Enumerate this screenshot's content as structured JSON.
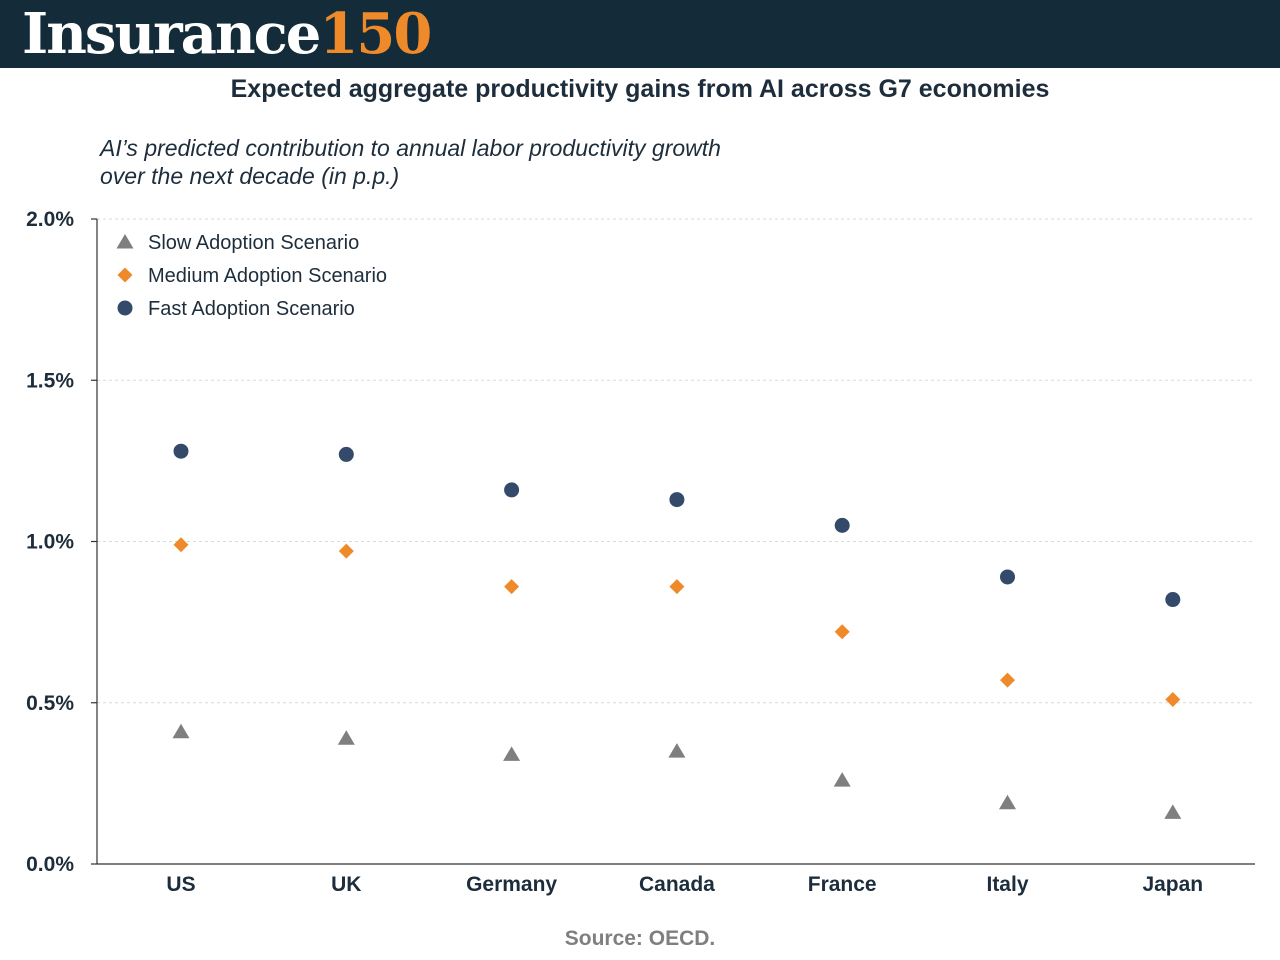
{
  "brand": {
    "word": "Insurance",
    "number": "150"
  },
  "colors": {
    "header_bg": "#142b39",
    "accent": "#ef8a2a",
    "slow": "#7f7f7f",
    "medium": "#ef8a2a",
    "fast": "#334a6a",
    "text": "#1d2d3b"
  },
  "source": "Source: OECD.",
  "chart_data": {
    "type": "scatter",
    "title": "Expected aggregate productivity gains from AI across G7 economies",
    "subtitle_lines": [
      "AI’s predicted contribution to annual labor productivity growth",
      "over the next decade (in p.p.)"
    ],
    "categories": [
      "US",
      "UK",
      "Germany",
      "Canada",
      "France",
      "Italy",
      "Japan"
    ],
    "y_ticks": [
      "0.0%",
      "0.5%",
      "1.0%",
      "1.5%",
      "2.0%"
    ],
    "y_tick_values": [
      0.0,
      0.5,
      1.0,
      1.5,
      2.0
    ],
    "ylim": [
      0,
      2.0
    ],
    "grid": true,
    "legend_position": "top-left",
    "series": [
      {
        "name": "Slow Adoption Scenario",
        "marker": "triangle",
        "color": "#7f7f7f",
        "values": [
          0.41,
          0.39,
          0.34,
          0.35,
          0.26,
          0.19,
          0.16
        ]
      },
      {
        "name": "Medium Adoption Scenario",
        "marker": "diamond",
        "color": "#ef8a2a",
        "values": [
          0.99,
          0.97,
          0.86,
          0.86,
          0.72,
          0.57,
          0.51
        ]
      },
      {
        "name": "Fast Adoption Scenario",
        "marker": "circle",
        "color": "#334a6a",
        "values": [
          1.28,
          1.27,
          1.16,
          1.13,
          1.05,
          0.89,
          0.82
        ]
      }
    ]
  }
}
